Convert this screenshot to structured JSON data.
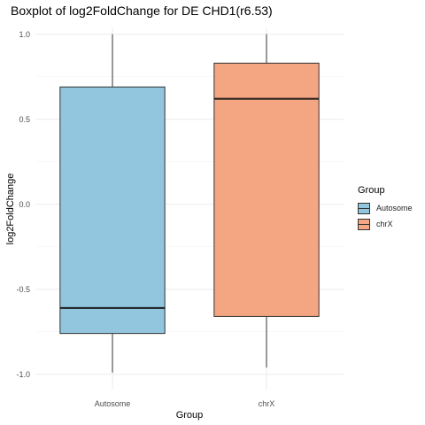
{
  "chart_data": {
    "type": "boxplot",
    "title": "Boxplot of log2FoldChange for DE CHD1(r6.53)",
    "xlabel": "Group",
    "ylabel": "log2FoldChange",
    "categories": [
      "Autosome",
      "chrX"
    ],
    "ylim": [
      -1.09,
      1.04
    ],
    "yticks": [
      1.0,
      0.5,
      0.0,
      -0.5,
      -1.0
    ],
    "ytick_labels": [
      "1.0",
      "0.5",
      "0.0",
      "-0.5",
      "-1.0"
    ],
    "grid": true,
    "legend": {
      "title": "Group",
      "position": "right",
      "items": [
        "Autosome",
        "chrX"
      ]
    },
    "boxes": [
      {
        "group": "Autosome",
        "whisker_low": -0.99,
        "q1": -0.76,
        "median": -0.61,
        "q3": 0.69,
        "whisker_high": 1.0,
        "color": "#92c5de"
      },
      {
        "group": "chrX",
        "whisker_low": -0.96,
        "q1": -0.66,
        "median": 0.62,
        "q3": 0.83,
        "whisker_high": 1.0,
        "color": "#f4a582"
      }
    ]
  }
}
